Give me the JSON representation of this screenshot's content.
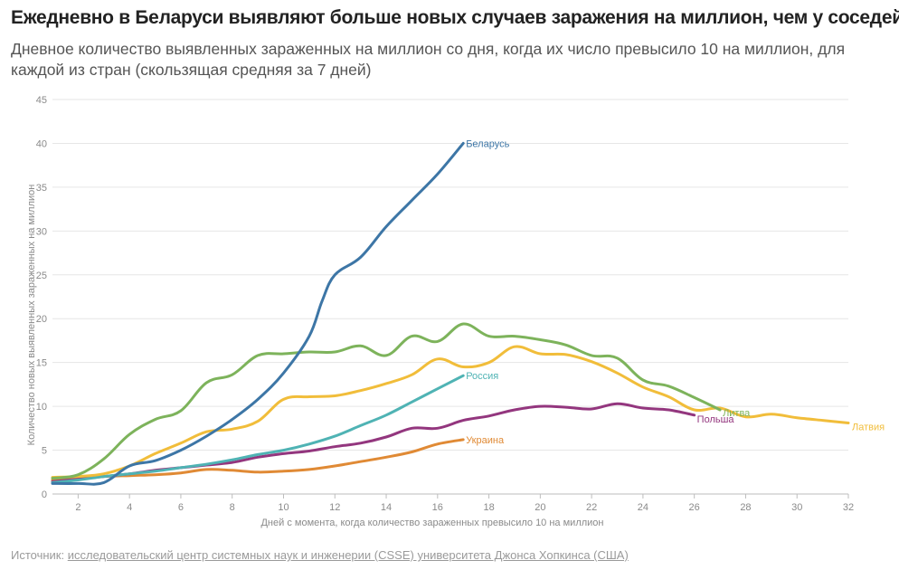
{
  "header": {
    "title": "Ежедневно в Беларуси выявляют больше новых случаев заражения на миллион, чем у соседей",
    "subtitle": "Дневное количество выявленных зараженных на миллион со дня, когда их число превысило 10 на миллион, для каждой из стран (скользящая средняя за 7 дней)"
  },
  "footer": {
    "source_prefix": "Источник:",
    "source_link": "исследовательский центр системных наук и инженерии (CSSE) университета Джонса Хопкинса (США)"
  },
  "chart_data": {
    "type": "line",
    "title": "Ежедневно в Беларуси выявляют больше новых случаев заражения на миллион, чем у соседей",
    "subtitle": "Дневное количество выявленных зараженных на миллион со дня, когда их число превысило 10 на миллион, для каждой из стран (скользящая средняя за 7 дней)",
    "xlabel": "Дней с момента, когда количество зараженных превысило 10 на миллион",
    "ylabel": "Количество новых выявленных зараженных на миллион",
    "xlim": [
      1,
      32
    ],
    "ylim": [
      0,
      45
    ],
    "xticks": [
      2,
      4,
      6,
      8,
      10,
      12,
      14,
      16,
      18,
      20,
      22,
      24,
      26,
      28,
      30,
      32
    ],
    "yticks": [
      0,
      5,
      10,
      15,
      20,
      25,
      30,
      35,
      40,
      45
    ],
    "grid": true,
    "legend": "inline labels at line ends",
    "series": [
      {
        "name": "Беларусь",
        "color": "#3d76a6",
        "x": [
          1,
          2,
          3,
          4,
          5,
          6,
          7,
          8,
          9,
          10,
          11,
          11.5,
          12,
          13,
          14,
          15,
          16,
          17
        ],
        "y": [
          1.2,
          1.2,
          1.3,
          3.2,
          3.8,
          5,
          6.6,
          8.5,
          10.8,
          13.8,
          18,
          22,
          25,
          27,
          30.5,
          33.5,
          36.5,
          40
        ]
      },
      {
        "name": "Литва",
        "color": "#7db35b",
        "x": [
          1,
          2,
          3,
          4,
          5,
          6,
          7,
          8,
          9,
          10,
          11,
          12,
          13,
          14,
          15,
          16,
          17,
          18,
          19,
          20,
          21,
          22,
          23,
          24,
          25,
          26,
          27
        ],
        "y": [
          1.8,
          2.2,
          4,
          6.8,
          8.5,
          9.5,
          12.7,
          13.6,
          15.8,
          16,
          16.2,
          16.2,
          16.9,
          15.8,
          18,
          17.4,
          19.4,
          18,
          18,
          17.6,
          17,
          15.8,
          15.5,
          13,
          12.3,
          11,
          9.6
        ]
      },
      {
        "name": "Латвия",
        "color": "#f1bd3a",
        "x": [
          1,
          2,
          3,
          4,
          5,
          6,
          7,
          8,
          9,
          10,
          11,
          12,
          13,
          14,
          15,
          16,
          17,
          18,
          19,
          20,
          21,
          22,
          23,
          24,
          25,
          26,
          27,
          28,
          29,
          30,
          31,
          32
        ],
        "y": [
          1.9,
          2,
          2.3,
          3.2,
          4.6,
          5.8,
          7.1,
          7.4,
          8.3,
          10.8,
          11.1,
          11.2,
          11.8,
          12.6,
          13.6,
          15.4,
          14.5,
          15,
          16.8,
          16,
          15.9,
          15.1,
          13.8,
          12.2,
          11.1,
          9.6,
          9.8,
          8.8,
          9.1,
          8.7,
          8.4,
          8.1
        ]
      },
      {
        "name": "Россия",
        "color": "#4fb3b4",
        "x": [
          1,
          2,
          3,
          4,
          5,
          6,
          7,
          8,
          9,
          10,
          11,
          12,
          13,
          14,
          15,
          16,
          17
        ],
        "y": [
          1.3,
          1.6,
          2,
          2.3,
          2.6,
          3,
          3.4,
          3.9,
          4.5,
          5,
          5.7,
          6.6,
          7.8,
          9,
          10.5,
          12,
          13.5
        ]
      },
      {
        "name": "Польша",
        "color": "#93367e",
        "x": [
          1,
          2,
          3,
          4,
          5,
          6,
          7,
          8,
          9,
          10,
          11,
          12,
          13,
          14,
          15,
          16,
          17,
          18,
          19,
          20,
          21,
          22,
          23,
          24,
          25,
          26
        ],
        "y": [
          1.4,
          1.7,
          2,
          2.3,
          2.7,
          3,
          3.3,
          3.6,
          4.2,
          4.6,
          4.9,
          5.4,
          5.8,
          6.5,
          7.5,
          7.5,
          8.4,
          8.9,
          9.6,
          10,
          9.9,
          9.7,
          10.3,
          9.8,
          9.6,
          9
        ]
      },
      {
        "name": "Украина",
        "color": "#e08a35",
        "x": [
          1,
          2,
          3,
          4,
          5,
          6,
          7,
          8,
          9,
          10,
          11,
          12,
          13,
          14,
          15,
          16,
          17
        ],
        "y": [
          1.6,
          1.8,
          2,
          2.1,
          2.2,
          2.4,
          2.8,
          2.7,
          2.5,
          2.6,
          2.8,
          3.2,
          3.7,
          4.2,
          4.8,
          5.7,
          6.2
        ]
      }
    ]
  }
}
